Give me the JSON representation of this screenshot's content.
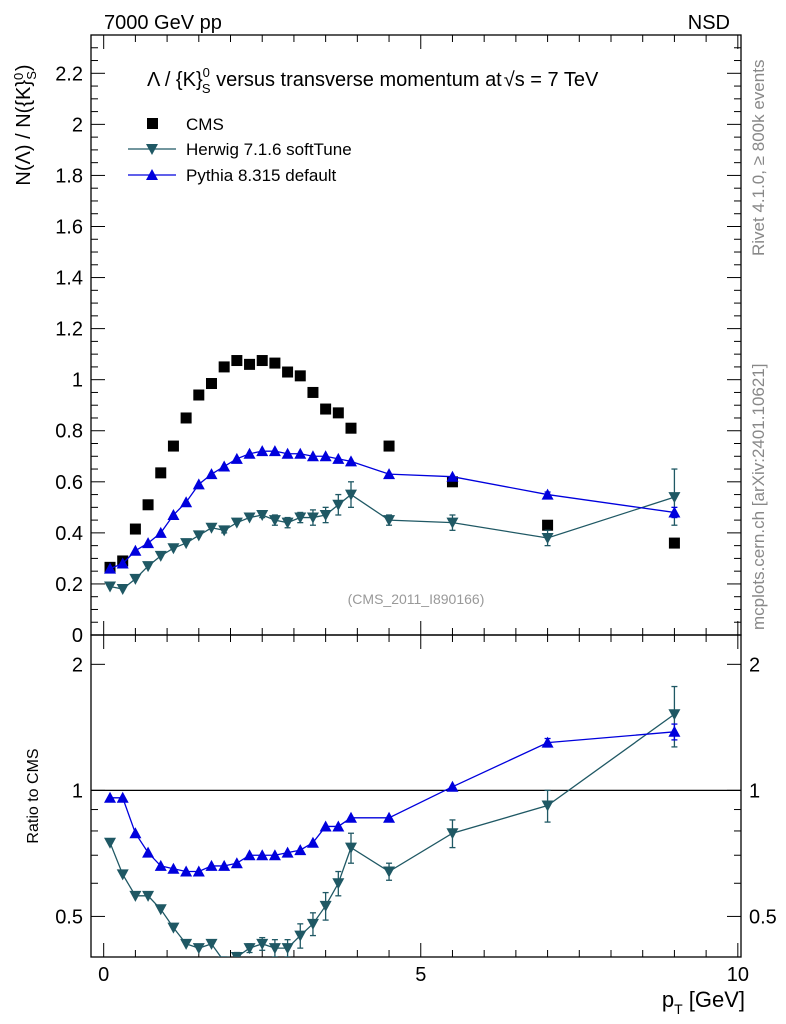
{
  "header": {
    "energy_label": "7000 GeV pp",
    "process_label": "NSD"
  },
  "chart_data": {
    "type": "scatter",
    "title": "Λ / {K}⁰S versus transverse momentum at √s = 7 TeV",
    "title_text": "Λ / {K}",
    "title_sup": "0",
    "title_sub": "S",
    "title_rest": " versus transverse momentum at",
    "title_sqrt": "√s = 7 TeV",
    "ylabel": "N(Λ)  /  N({K}⁰S)",
    "xlabel": "p_T [GeV]",
    "xlabel_main": "p",
    "xlabel_sub": "T",
    "xlabel_unit": " [GeV]",
    "xlim": [
      -0.2,
      10.05
    ],
    "ylim": [
      0,
      2.35
    ],
    "xticks": [
      "0",
      "5",
      "10"
    ],
    "xtick_values": [
      0,
      5,
      10
    ],
    "yticks": [
      "0",
      "0.2",
      "0.4",
      "0.6",
      "0.8",
      "1",
      "1.2",
      "1.4",
      "1.6",
      "1.8",
      "2",
      "2.2"
    ],
    "ytick_values": [
      0,
      0.2,
      0.4,
      0.6,
      0.8,
      1,
      1.2,
      1.4,
      1.6,
      1.8,
      2,
      2.2
    ],
    "watermark": "(CMS_2011_I890166)",
    "series": [
      {
        "name": "CMS",
        "color": "#000000",
        "marker": "square",
        "x": [
          0.1,
          0.3,
          0.5,
          0.7,
          0.9,
          1.1,
          1.3,
          1.5,
          1.7,
          1.9,
          2.1,
          2.3,
          2.5,
          2.7,
          2.9,
          3.1,
          3.3,
          3.5,
          3.7,
          3.9,
          4.5,
          5.5,
          7.0,
          9.0
        ],
        "y": [
          0.265,
          0.29,
          0.415,
          0.51,
          0.635,
          0.74,
          0.85,
          0.94,
          0.985,
          1.05,
          1.075,
          1.06,
          1.075,
          1.065,
          1.03,
          1.015,
          0.95,
          0.885,
          0.87,
          0.81,
          0.74,
          0.6,
          0.43,
          0.36
        ]
      },
      {
        "name": "Herwig 7.1.6 softTune",
        "color": "#1f5864",
        "marker": "triangle-down",
        "x": [
          0.1,
          0.3,
          0.5,
          0.7,
          0.9,
          1.1,
          1.3,
          1.5,
          1.7,
          1.9,
          2.1,
          2.3,
          2.5,
          2.7,
          2.9,
          3.1,
          3.3,
          3.5,
          3.7,
          3.9,
          4.5,
          5.5,
          7.0,
          9.0
        ],
        "y": [
          0.19,
          0.18,
          0.22,
          0.27,
          0.31,
          0.34,
          0.36,
          0.39,
          0.42,
          0.41,
          0.44,
          0.46,
          0.47,
          0.45,
          0.44,
          0.46,
          0.46,
          0.47,
          0.51,
          0.55,
          0.45,
          0.44,
          0.38,
          0.54
        ],
        "err": [
          0,
          0,
          0,
          0,
          0,
          0,
          0,
          0,
          0,
          0.01,
          0,
          0,
          0.01,
          0.02,
          0.02,
          0.02,
          0.03,
          0.03,
          0.04,
          0.05,
          0.02,
          0.03,
          0.03,
          0.11
        ]
      },
      {
        "name": "Pythia 8.315 default",
        "color": "#0000dd",
        "marker": "triangle-up",
        "x": [
          0.1,
          0.3,
          0.5,
          0.7,
          0.9,
          1.1,
          1.3,
          1.5,
          1.7,
          1.9,
          2.1,
          2.3,
          2.5,
          2.7,
          2.9,
          3.1,
          3.3,
          3.5,
          3.7,
          3.9,
          4.5,
          5.5,
          7.0,
          9.0
        ],
        "y": [
          0.26,
          0.28,
          0.33,
          0.36,
          0.4,
          0.47,
          0.52,
          0.59,
          0.63,
          0.66,
          0.69,
          0.71,
          0.72,
          0.72,
          0.71,
          0.71,
          0.7,
          0.7,
          0.69,
          0.68,
          0.63,
          0.62,
          0.55,
          0.48
        ],
        "err": [
          0,
          0,
          0,
          0,
          0,
          0,
          0,
          0,
          0,
          0,
          0,
          0,
          0,
          0,
          0,
          0,
          0,
          0,
          0,
          0,
          0,
          0,
          0.01,
          0.02
        ]
      }
    ],
    "ratio": {
      "ylabel": "Ratio to CMS",
      "ylim": [
        0.4,
        2.35
      ],
      "yticks": [
        "0.5",
        "1",
        "2"
      ],
      "ytick_values": [
        0.5,
        1,
        2
      ],
      "reference": 1,
      "series": [
        {
          "name": "Herwig 7.1.6 softTune",
          "color": "#1f5864",
          "marker": "triangle-down",
          "x": [
            0.1,
            0.3,
            0.5,
            0.7,
            0.9,
            1.1,
            1.3,
            1.5,
            1.7,
            1.9,
            2.1,
            2.3,
            2.5,
            2.7,
            2.9,
            3.1,
            3.3,
            3.5,
            3.7,
            3.9,
            4.5,
            5.5,
            7.0,
            9.0
          ],
          "y": [
            0.75,
            0.63,
            0.56,
            0.56,
            0.52,
            0.47,
            0.43,
            0.42,
            0.43,
            0.39,
            0.4,
            0.42,
            0.43,
            0.42,
            0.42,
            0.45,
            0.48,
            0.53,
            0.6,
            0.73,
            0.64,
            0.79,
            0.92,
            1.52
          ],
          "err": [
            0,
            0,
            0,
            0,
            0,
            0,
            0,
            0,
            0,
            0.01,
            0.01,
            0.01,
            0.015,
            0.02,
            0.02,
            0.03,
            0.03,
            0.04,
            0.04,
            0.06,
            0.03,
            0.06,
            0.08,
            0.25
          ]
        },
        {
          "name": "Pythia 8.315 default",
          "color": "#0000dd",
          "marker": "triangle-up",
          "x": [
            0.1,
            0.3,
            0.5,
            0.7,
            0.9,
            1.1,
            1.3,
            1.5,
            1.7,
            1.9,
            2.1,
            2.3,
            2.5,
            2.7,
            2.9,
            3.1,
            3.3,
            3.5,
            3.7,
            3.9,
            4.5,
            5.5,
            7.0,
            9.0
          ],
          "y": [
            0.96,
            0.96,
            0.79,
            0.71,
            0.66,
            0.65,
            0.64,
            0.64,
            0.66,
            0.66,
            0.67,
            0.7,
            0.7,
            0.7,
            0.71,
            0.72,
            0.75,
            0.82,
            0.82,
            0.86,
            0.86,
            1.02,
            1.3,
            1.38
          ],
          "err": [
            0,
            0,
            0,
            0,
            0,
            0,
            0,
            0,
            0,
            0,
            0,
            0,
            0,
            0,
            0,
            0,
            0,
            0,
            0,
            0,
            0,
            0,
            0.03,
            0.06
          ]
        }
      ]
    }
  },
  "sidebar": {
    "rivet_label": "Rivet 4.1.0, ≥ 800k events",
    "mcplots_label": "mcplots.cern.ch [arXiv:2401.10621]"
  }
}
